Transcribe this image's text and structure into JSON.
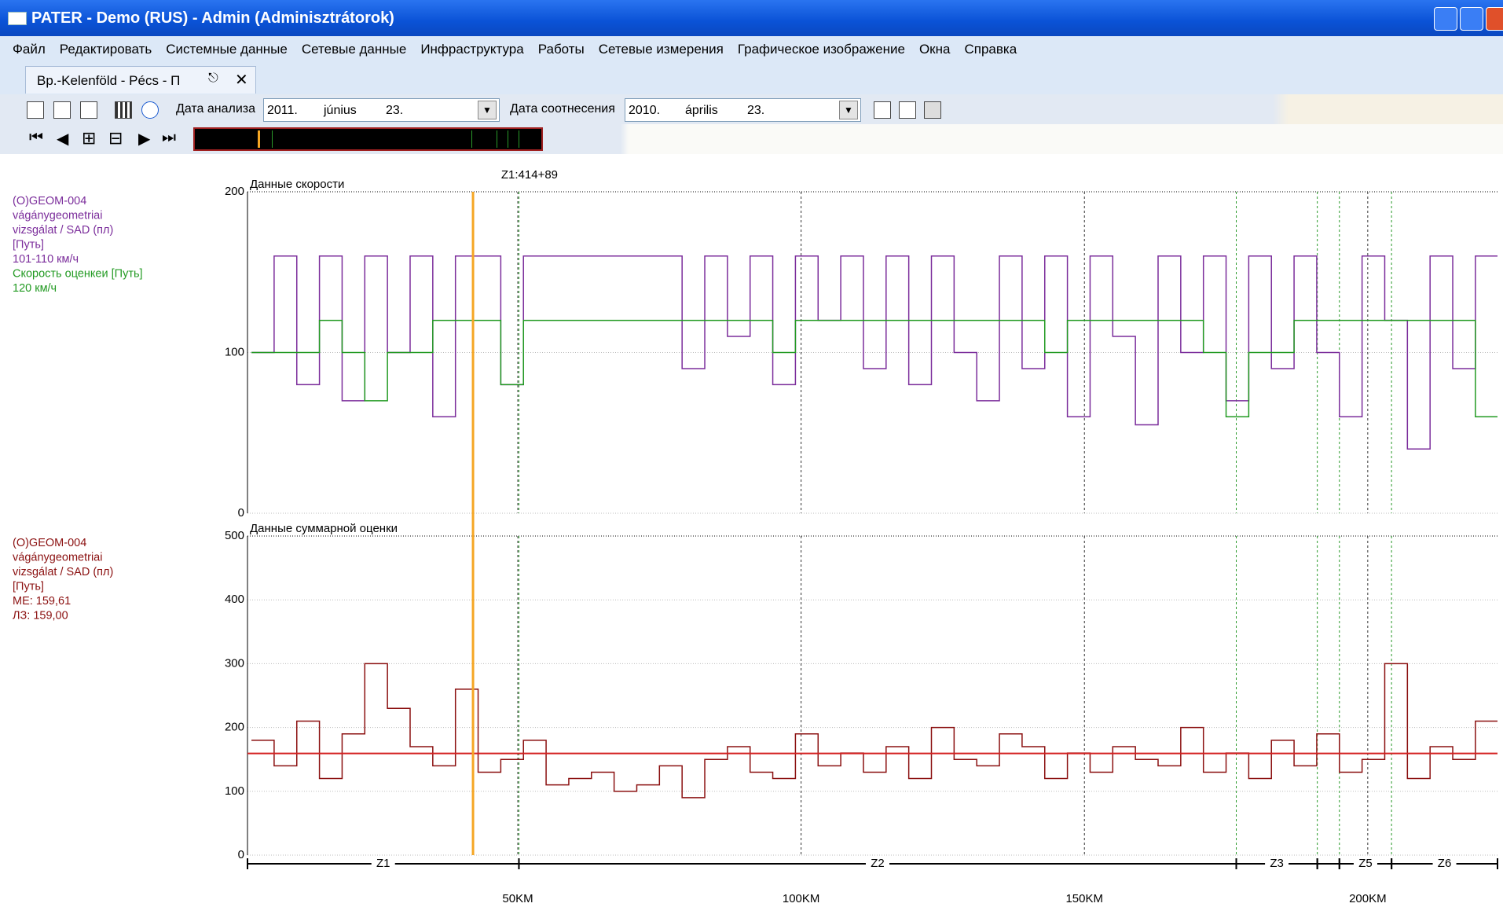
{
  "window": {
    "title": "PATER - Demo (RUS) - Admin (Adminisztrátorok)"
  },
  "menu": [
    "Файл",
    "Редактировать",
    "Системные данные",
    "Сетевые данные",
    "Инфраструктура",
    "Работы",
    "Сетевые измерения",
    "Графическое изображение",
    "Окна",
    "Справка"
  ],
  "tab": {
    "label": "Bp.-Kelenföld - Pécs - П"
  },
  "toolbar": {
    "analysis_label": "Дата анализа",
    "analysis_date": [
      "2011.",
      "június",
      "23."
    ],
    "compare_label": "Дата соотнесения",
    "compare_date": [
      "2010.",
      "április",
      "23."
    ]
  },
  "x_axis": {
    "xlim": [
      2.3,
      222.9
    ],
    "xticks": [
      {
        "value": 50,
        "label": "50KM"
      },
      {
        "value": 100,
        "label": "100KM"
      },
      {
        "value": 150,
        "label": "150KM"
      },
      {
        "value": 200,
        "label": "200KM"
      }
    ],
    "zones": [
      {
        "name": "Z1",
        "start": 2.3,
        "end": 50.2
      },
      {
        "name": "Z2",
        "start": 50.2,
        "end": 176.8
      },
      {
        "name": "Z3",
        "start": 176.8,
        "end": 191.1
      },
      {
        "start": 191.1,
        "end": 195
      },
      {
        "name": "Z5",
        "start": 195,
        "end": 204.2
      },
      {
        "name": "Z6",
        "start": 204.2,
        "end": 222.9
      }
    ],
    "cursor": {
      "value": 42.1,
      "label": "Z1:414+89"
    }
  },
  "chart_data": [
    {
      "type": "line",
      "title": "Данные скорости",
      "ylim": [
        0,
        200
      ],
      "yticks": [
        0,
        100,
        200
      ],
      "grid": true,
      "x": [
        3,
        7,
        11,
        15,
        19,
        23,
        27,
        31,
        35,
        39,
        43,
        47,
        51,
        55,
        59,
        63,
        67,
        71,
        75,
        79,
        83,
        87,
        91,
        95,
        99,
        103,
        107,
        111,
        115,
        119,
        123,
        127,
        131,
        135,
        139,
        143,
        147,
        151,
        155,
        159,
        163,
        167,
        171,
        175,
        179,
        183,
        187,
        191,
        195,
        199,
        203,
        207,
        211,
        215,
        219
      ],
      "series": [
        {
          "legend": [
            "(O)GEOM-004",
            "vágánygeometriai",
            "vizsgálat / SAD (пл)",
            "[Путь]",
            "101-110 км/ч"
          ],
          "color": "#7b2d9b",
          "values": [
            100,
            160,
            80,
            160,
            70,
            160,
            100,
            160,
            60,
            160,
            160,
            80,
            160,
            160,
            160,
            160,
            160,
            160,
            160,
            90,
            160,
            110,
            160,
            80,
            160,
            120,
            160,
            90,
            160,
            80,
            160,
            100,
            70,
            160,
            90,
            160,
            60,
            160,
            110,
            55,
            160,
            100,
            160,
            70,
            160,
            90,
            160,
            100,
            60,
            160,
            120,
            40,
            160,
            90,
            160
          ]
        },
        {
          "legend": [
            "Скорость оценкеи [Путь]",
            "120 км/ч"
          ],
          "color": "#229a22",
          "values": [
            100,
            100,
            100,
            120,
            100,
            70,
            100,
            100,
            120,
            120,
            120,
            80,
            120,
            120,
            120,
            120,
            120,
            120,
            120,
            120,
            120,
            120,
            120,
            100,
            120,
            120,
            120,
            120,
            120,
            120,
            120,
            120,
            120,
            120,
            120,
            100,
            120,
            120,
            120,
            120,
            120,
            120,
            100,
            60,
            100,
            100,
            120,
            120,
            120,
            120,
            120,
            120,
            120,
            120,
            60
          ]
        }
      ]
    },
    {
      "type": "line",
      "title": "Данные суммарной оценки",
      "ylim": [
        0,
        500
      ],
      "yticks": [
        0,
        100,
        200,
        300,
        400,
        500
      ],
      "grid": true,
      "x": [
        3,
        7,
        11,
        15,
        19,
        23,
        27,
        31,
        35,
        39,
        43,
        47,
        51,
        55,
        59,
        63,
        67,
        71,
        75,
        79,
        83,
        87,
        91,
        95,
        99,
        103,
        107,
        111,
        115,
        119,
        123,
        127,
        131,
        135,
        139,
        143,
        147,
        151,
        155,
        159,
        163,
        167,
        171,
        175,
        179,
        183,
        187,
        191,
        195,
        199,
        203,
        207,
        211,
        215,
        219
      ],
      "series": [
        {
          "legend": [
            "(O)GEOM-004",
            "vágánygeometriai",
            "vizsgálat / SAD (пл)",
            "[Путь]"
          ],
          "color": "#8b1010",
          "values": [
            180,
            140,
            210,
            120,
            190,
            300,
            230,
            170,
            140,
            260,
            130,
            150,
            180,
            110,
            120,
            130,
            100,
            110,
            140,
            90,
            150,
            170,
            130,
            120,
            190,
            140,
            160,
            130,
            170,
            120,
            200,
            150,
            140,
            190,
            170,
            120,
            160,
            130,
            170,
            150,
            140,
            200,
            130,
            160,
            120,
            180,
            140,
            190,
            130,
            150,
            300,
            120,
            170,
            150,
            210
          ]
        }
      ],
      "reference_lines": [
        {
          "label": "МЕ: 159,61",
          "value": 159.61,
          "color": "#d42020"
        },
        {
          "label": "ЛЗ: 159,00",
          "value": 159,
          "color": "#d42020"
        }
      ]
    }
  ]
}
